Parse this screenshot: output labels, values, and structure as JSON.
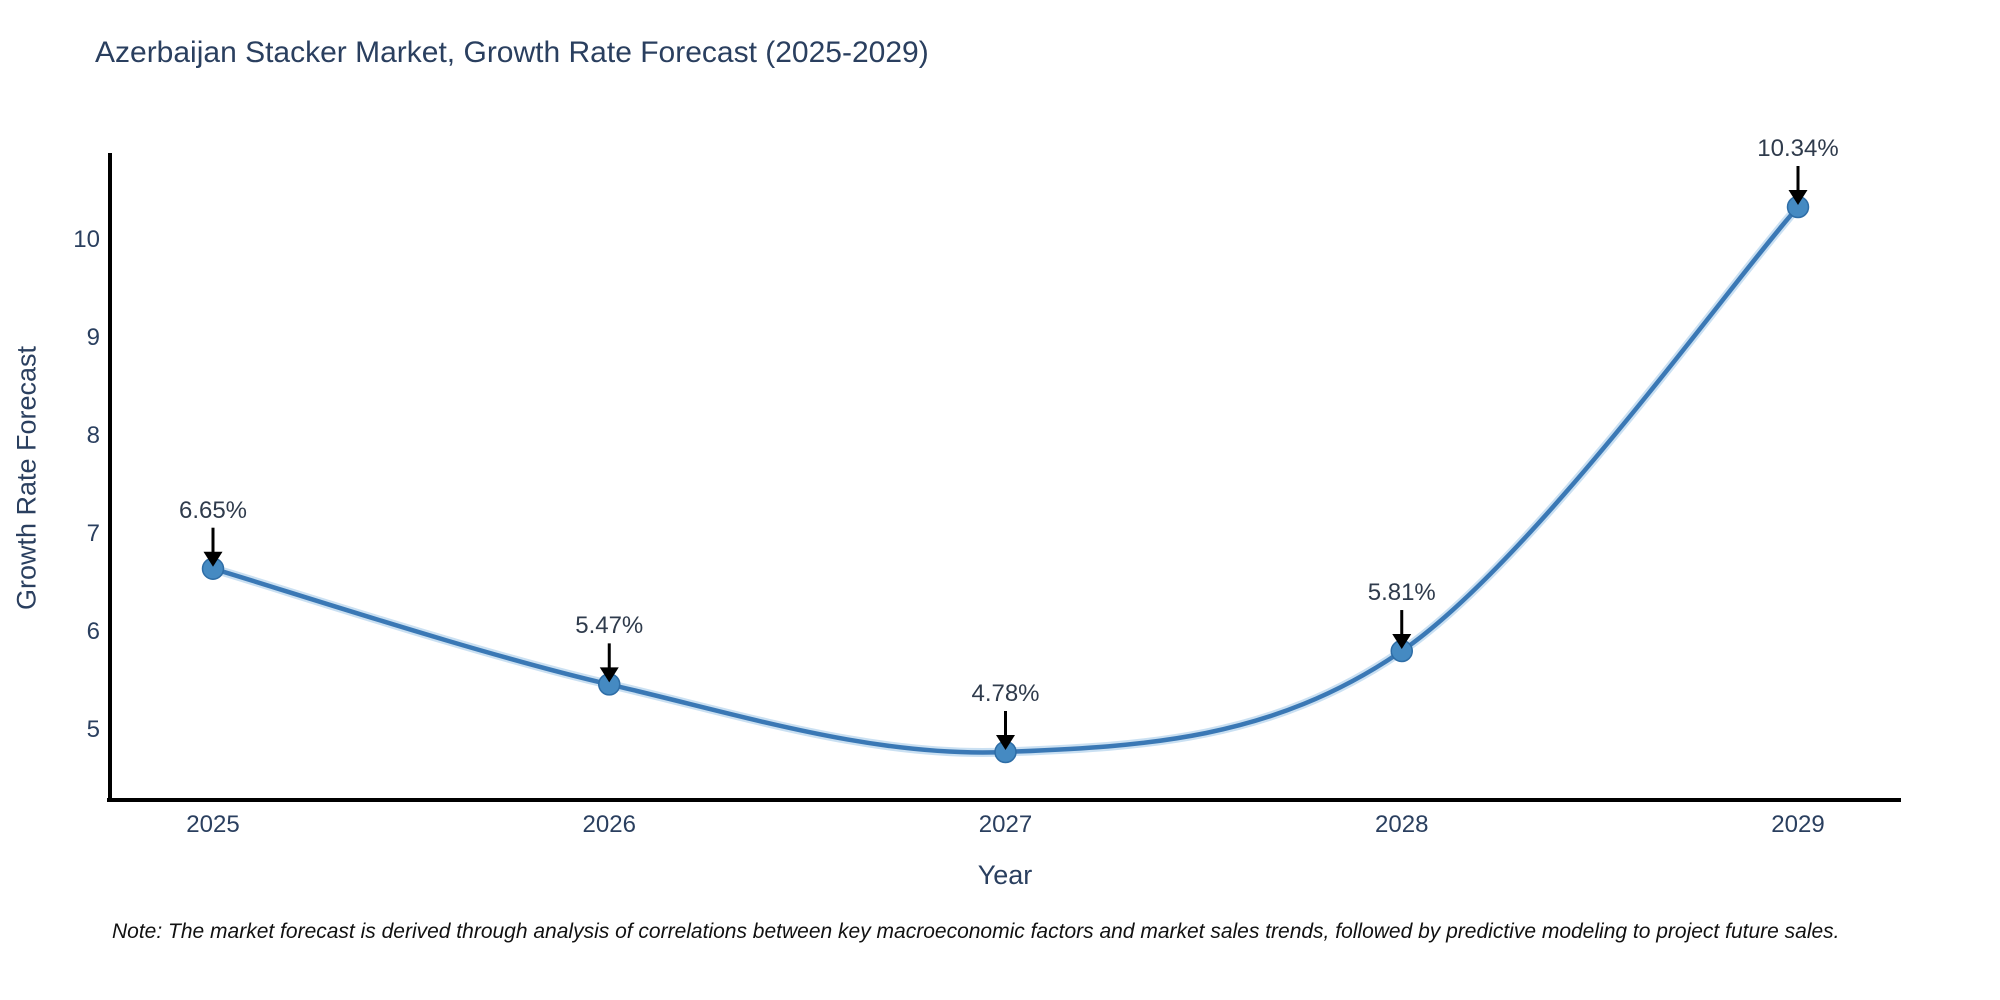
{
  "note": "Note: The market forecast is derived through analysis of correlations between key macroeconomic factors and market sales trends, followed by predictive modeling to project future sales.",
  "chart_data": {
    "type": "line",
    "title": "Azerbaijan Stacker Market, Growth Rate Forecast (2025-2029)",
    "xlabel": "Year",
    "ylabel": "Growth Rate Forecast",
    "categories": [
      "2025",
      "2026",
      "2027",
      "2028",
      "2029"
    ],
    "series": [
      {
        "name": "Growth Rate Forecast",
        "values": [
          6.65,
          5.47,
          4.78,
          5.81,
          10.34
        ]
      }
    ],
    "point_labels": [
      "6.65%",
      "5.47%",
      "4.78%",
      "5.81%",
      "10.34%"
    ],
    "y_ticks": [
      5,
      6,
      7,
      8,
      9,
      10
    ],
    "ylim": [
      4.3,
      10.9
    ],
    "grid": false,
    "legend_visible": false,
    "line_style": "spline",
    "marker_style": "circle",
    "annotation_arrows": "black-down-arrows",
    "colors": {
      "line": "#3a78b5",
      "line_halo": "rgba(150,193,230,0.5)",
      "marker": "#458ac2",
      "marker_edge": "#2e6da6",
      "axis": "#000000",
      "tick_text": "#2a3f5f",
      "annotation_text": "#2f3b4c",
      "arrow": "#000000",
      "title_text": "#2a3f5f",
      "note_text": "#111111",
      "background": "#ffffff"
    }
  }
}
